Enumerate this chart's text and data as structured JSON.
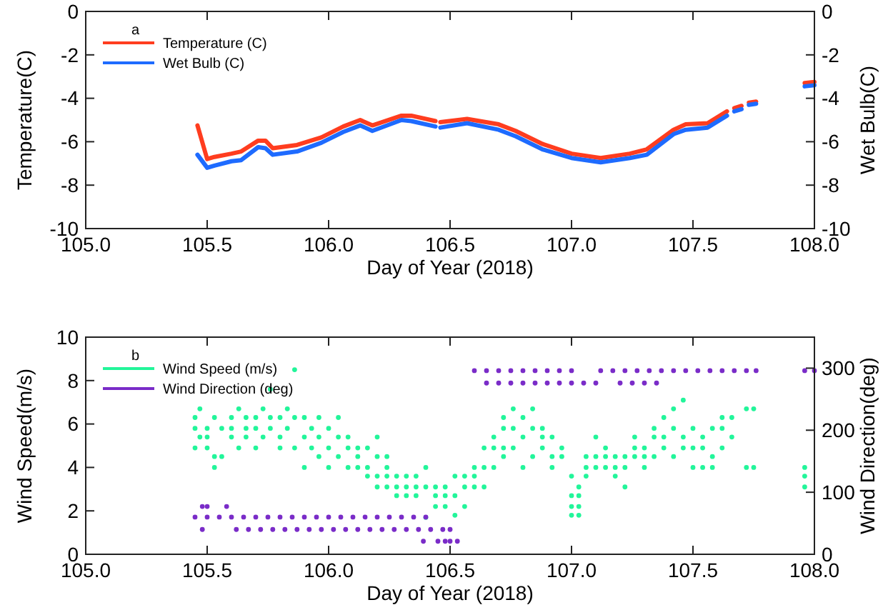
{
  "chart_data": [
    {
      "type": "line",
      "annotations": [
        "a"
      ],
      "xlabel": "Day of Year (2018)",
      "ylabel": "Temperature(C)",
      "y2label": "Wet Bulb(C)",
      "xlim": [
        105.0,
        108.0
      ],
      "xticks": [
        {
          "value": 105,
          "label": "105.0"
        },
        {
          "value": 105.5,
          "label": "105.5"
        },
        {
          "value": 106,
          "label": "106.0"
        },
        {
          "value": 106.5,
          "label": "106.5"
        },
        {
          "value": 107,
          "label": "107.0"
        },
        {
          "value": 107.5,
          "label": "107.5"
        },
        {
          "value": 108,
          "label": "108.0"
        }
      ],
      "ylim": [
        -10,
        0
      ],
      "yticks": [
        -10,
        -8,
        -6,
        -4,
        -2,
        0
      ],
      "y2lim": [
        -10,
        0
      ],
      "y2ticks": [
        -10,
        -8,
        -6,
        -4,
        -2,
        0
      ],
      "legend": "top left",
      "grid": false,
      "marker": "none",
      "line_style": "solid",
      "x": [
        105.46,
        105.5,
        105.53,
        105.6,
        105.64,
        105.71,
        105.74,
        105.77,
        105.87,
        105.97,
        106.06,
        106.13,
        106.18,
        106.3,
        106.34,
        106.44,
        106.45,
        106.46,
        106.57,
        106.7,
        106.77,
        106.88,
        107.0,
        107.12,
        107.24,
        107.31,
        107.42,
        107.47,
        107.56,
        107.64,
        107.655,
        107.67,
        107.7,
        107.715,
        107.73,
        107.76,
        107.9,
        107.96,
        108.0
      ],
      "series": [
        {
          "name": "Temperature (C)",
          "color": "#ff3d1f",
          "values": [
            -5.25,
            -6.8,
            -6.7,
            -6.55,
            -6.45,
            -5.95,
            -5.95,
            -6.3,
            -6.15,
            -5.8,
            -5.3,
            -5.0,
            -5.25,
            -4.8,
            -4.8,
            -5.05,
            null,
            -5.1,
            -4.95,
            -5.2,
            -5.5,
            -6.1,
            -6.55,
            -6.75,
            -6.55,
            -6.35,
            -5.45,
            -5.2,
            -5.15,
            -4.6,
            null,
            -4.45,
            -4.35,
            null,
            -4.2,
            -4.15,
            null,
            -3.3,
            -3.25
          ]
        },
        {
          "name": "Wet Bulb (C)",
          "color": "#1e6bff",
          "values": [
            -6.6,
            -7.2,
            -7.1,
            -6.9,
            -6.85,
            -6.25,
            -6.3,
            -6.6,
            -6.45,
            -6.05,
            -5.55,
            -5.25,
            -5.5,
            -5.0,
            -5.05,
            -5.3,
            null,
            -5.35,
            -5.15,
            -5.45,
            -5.75,
            -6.35,
            -6.75,
            -6.95,
            -6.75,
            -6.6,
            -5.65,
            -5.45,
            -5.35,
            -4.8,
            null,
            -4.6,
            -4.5,
            null,
            -4.3,
            -4.25,
            null,
            -3.45,
            -3.4
          ]
        }
      ]
    },
    {
      "type": "scatter",
      "annotations": [
        "b"
      ],
      "xlabel": "Day of Year (2018)",
      "ylabel": "Wind Speed(m/s)",
      "y2label": "Wind Direction(deg)",
      "xlim": [
        105.0,
        108.0
      ],
      "xticks": [
        {
          "value": 105,
          "label": "105.0"
        },
        {
          "value": 105.5,
          "label": "105.5"
        },
        {
          "value": 106,
          "label": "106.0"
        },
        {
          "value": 106.5,
          "label": "106.5"
        },
        {
          "value": 107,
          "label": "107.0"
        },
        {
          "value": 107.5,
          "label": "107.5"
        },
        {
          "value": 108,
          "label": "108.0"
        }
      ],
      "ylim": [
        0,
        10
      ],
      "yticks": [
        0,
        2,
        4,
        6,
        8,
        10
      ],
      "y2lim": [
        0,
        350
      ],
      "y2ticks": [
        0,
        100,
        200,
        300
      ],
      "legend": "top left",
      "grid": false,
      "marker": "circle",
      "series": [
        {
          "name": "Wind Speed (m/s)",
          "color": "#22f59a",
          "x": [
            105.45,
            105.45,
            105.45,
            105.47,
            105.47,
            105.5,
            105.5,
            105.5,
            105.53,
            105.53,
            105.53,
            105.56,
            105.56,
            105.6,
            105.6,
            105.6,
            105.63,
            105.63,
            105.66,
            105.66,
            105.66,
            105.7,
            105.7,
            105.7,
            105.73,
            105.73,
            105.76,
            105.76,
            105.76,
            105.8,
            105.8,
            105.8,
            105.83,
            105.83,
            105.86,
            105.86,
            105.86,
            105.9,
            105.9,
            105.9,
            105.93,
            105.93,
            105.96,
            105.96,
            105.96,
            106.0,
            106.0,
            106.0,
            106.04,
            106.04,
            106.04,
            106.08,
            106.08,
            106.08,
            106.12,
            106.12,
            106.12,
            106.16,
            106.16,
            106.16,
            106.2,
            106.2,
            106.2,
            106.2,
            106.24,
            106.24,
            106.24,
            106.24,
            106.28,
            106.28,
            106.28,
            106.32,
            106.32,
            106.32,
            106.36,
            106.36,
            106.36,
            106.4,
            106.4,
            106.4,
            106.44,
            106.44,
            106.44,
            106.48,
            106.48,
            106.48,
            106.52,
            106.52,
            106.52,
            106.56,
            106.56,
            106.56,
            106.6,
            106.6,
            106.6,
            106.64,
            106.64,
            106.64,
            106.68,
            106.68,
            106.68,
            106.72,
            106.72,
            106.72,
            106.72,
            106.76,
            106.76,
            106.76,
            106.8,
            106.8,
            106.8,
            106.84,
            106.84,
            106.84,
            106.88,
            106.88,
            106.88,
            106.92,
            106.92,
            106.92,
            106.96,
            106.96,
            107.0,
            107.0,
            107.0,
            107.0,
            107.03,
            107.03,
            107.03,
            107.03,
            107.06,
            107.06,
            107.06,
            107.1,
            107.1,
            107.1,
            107.14,
            107.14,
            107.14,
            107.18,
            107.18,
            107.18,
            107.22,
            107.22,
            107.22,
            107.26,
            107.26,
            107.26,
            107.3,
            107.3,
            107.3,
            107.34,
            107.34,
            107.34,
            107.38,
            107.38,
            107.38,
            107.42,
            107.42,
            107.42,
            107.46,
            107.46,
            107.46,
            107.5,
            107.5,
            107.5,
            107.54,
            107.54,
            107.54,
            107.58,
            107.58,
            107.58,
            107.62,
            107.62,
            107.62,
            107.66,
            107.66,
            107.72,
            107.72,
            107.75,
            107.75,
            107.96,
            107.96,
            107.96
          ],
          "values": [
            6.3,
            5.8,
            4.9,
            5.4,
            6.7,
            5.8,
            5.4,
            4.9,
            6.3,
            4.5,
            4.0,
            5.8,
            4.5,
            6.3,
            5.4,
            5.8,
            6.7,
            4.9,
            5.8,
            6.3,
            5.4,
            6.3,
            5.8,
            4.9,
            6.7,
            5.4,
            7.6,
            6.3,
            5.8,
            6.3,
            5.4,
            4.9,
            6.7,
            5.8,
            8.5,
            6.3,
            4.9,
            6.3,
            5.4,
            4.0,
            5.8,
            4.9,
            6.3,
            5.4,
            4.5,
            5.8,
            4.0,
            4.9,
            6.3,
            5.4,
            4.5,
            4.9,
            4.0,
            5.4,
            4.9,
            4.5,
            4.0,
            4.9,
            4.0,
            3.6,
            5.4,
            4.5,
            3.6,
            3.1,
            4.5,
            4.0,
            3.6,
            3.1,
            3.6,
            3.1,
            2.7,
            3.1,
            2.7,
            3.6,
            3.1,
            2.7,
            3.6,
            3.1,
            4.0,
            1.7,
            2.7,
            2.2,
            3.1,
            3.1,
            2.7,
            2.2,
            3.6,
            2.7,
            1.8,
            3.6,
            3.1,
            2.2,
            4.0,
            3.6,
            3.1,
            4.9,
            4.0,
            3.1,
            5.4,
            4.9,
            4.0,
            6.3,
            5.8,
            4.9,
            4.5,
            6.7,
            5.8,
            4.9,
            6.3,
            5.4,
            4.0,
            6.7,
            5.8,
            4.5,
            5.8,
            5.4,
            4.9,
            5.4,
            4.5,
            4.0,
            4.5,
            4.9,
            2.7,
            2.2,
            1.8,
            3.6,
            2.7,
            2.2,
            1.8,
            3.1,
            4.0,
            3.6,
            4.5,
            4.0,
            4.5,
            5.4,
            4.0,
            4.5,
            4.9,
            4.0,
            4.5,
            3.6,
            4.5,
            4.0,
            3.1,
            4.5,
            4.9,
            5.4,
            4.5,
            4.0,
            4.9,
            5.8,
            5.4,
            4.5,
            6.3,
            5.4,
            4.9,
            6.7,
            5.8,
            4.5,
            7.1,
            5.4,
            4.9,
            5.8,
            4.9,
            4.0,
            5.4,
            4.9,
            4.0,
            5.8,
            4.5,
            4.0,
            5.8,
            6.3,
            4.9,
            6.3,
            5.4,
            6.7,
            4.0,
            6.7,
            4.0,
            4.0,
            3.6,
            3.1
          ]
        },
        {
          "name": "Wind Direction (deg)",
          "color": "#7a2cc8",
          "axis": "y2",
          "x": [
            105.45,
            105.5,
            105.55,
            105.6,
            105.65,
            105.7,
            105.75,
            105.8,
            105.85,
            105.9,
            105.95,
            106.0,
            106.05,
            106.1,
            106.15,
            106.2,
            106.25,
            106.3,
            106.35,
            106.4,
            105.48,
            105.62,
            105.67,
            105.72,
            105.77,
            105.82,
            105.87,
            105.92,
            105.97,
            106.02,
            106.07,
            106.12,
            106.17,
            106.22,
            106.27,
            106.32,
            106.37,
            106.42,
            106.47,
            106.5,
            105.48,
            105.5,
            105.58,
            106.39,
            106.45,
            106.48,
            106.5,
            106.53,
            106.6,
            106.65,
            106.7,
            106.75,
            106.8,
            106.85,
            106.9,
            106.95,
            107.0,
            107.12,
            107.17,
            107.22,
            107.27,
            107.32,
            107.37,
            107.42,
            107.47,
            107.52,
            107.57,
            107.62,
            107.67,
            107.72,
            107.76,
            106.65,
            106.7,
            106.75,
            106.8,
            106.85,
            106.9,
            106.95,
            107.0,
            107.05,
            107.1,
            107.2,
            107.25,
            107.3,
            107.35,
            107.96,
            108.0
          ],
          "values": [
            60,
            60,
            60,
            60,
            60,
            60,
            60,
            60,
            60,
            60,
            60,
            60,
            60,
            60,
            60,
            60,
            60,
            60,
            60,
            60,
            40,
            40,
            40,
            40,
            40,
            40,
            40,
            40,
            40,
            40,
            40,
            40,
            40,
            40,
            40,
            40,
            40,
            40,
            40,
            40,
            77,
            77,
            77,
            21,
            21,
            21,
            21,
            21,
            296,
            296,
            296,
            296,
            296,
            296,
            296,
            296,
            296,
            296,
            296,
            296,
            296,
            296,
            296,
            296,
            296,
            296,
            296,
            296,
            296,
            296,
            296,
            276,
            276,
            276,
            276,
            276,
            276,
            276,
            276,
            276,
            276,
            276,
            276,
            276,
            276,
            296,
            296
          ]
        }
      ]
    }
  ]
}
